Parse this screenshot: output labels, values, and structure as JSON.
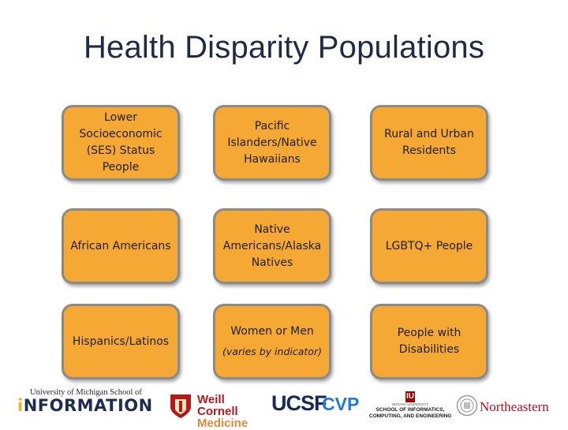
{
  "title": "Health Disparity Populations",
  "cards": [
    {
      "text": "Lower Socioeconomic (SES) Status People"
    },
    {
      "text": "Pacific Islanders/Native Hawaiians"
    },
    {
      "text": "Rural and Urban Residents"
    },
    {
      "text": "African Americans"
    },
    {
      "text": "Native Americans/Alaska Natives"
    },
    {
      "text": "LGBTQ+ People"
    },
    {
      "text": "Hispanics/Latinos"
    },
    {
      "text": "Women or Men",
      "note": "(varies by indicator)"
    },
    {
      "text": "People with Disabilities"
    }
  ],
  "logos": {
    "umich": {
      "line1": "University of Michigan School of",
      "line2_i": "i",
      "line2_rest": "NFORMATION"
    },
    "weill": {
      "line1": "Weill Cornell",
      "line2": "Medicine"
    },
    "ucsf": {
      "text": "UCSF"
    },
    "cvp": {
      "text": "CVP"
    },
    "iu": {
      "mark": "IU",
      "line1": "INDIANA UNIVERSITY",
      "line2": "SCHOOL OF INFORMATICS,",
      "line3": "COMPUTING, AND ENGINEERING"
    },
    "northeastern": {
      "text": "Northeastern"
    }
  },
  "colors": {
    "card_fill": "#f5a833",
    "card_border": "#8a8a8a",
    "title": "#1f2a44"
  }
}
